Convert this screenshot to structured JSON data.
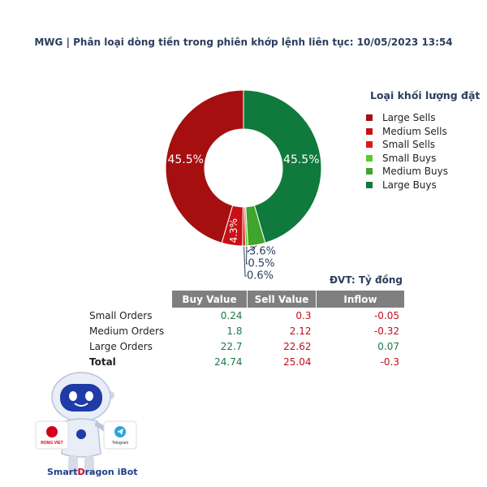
{
  "title": "MWG | Phân loại dòng tiền trong phiên khớp lệnh liên tục: 10/05/2023 13:54",
  "chart_data": {
    "type": "pie",
    "donut": true,
    "start_angle": "top, clockwise",
    "legend_title": "Loại khối lượng đặt",
    "legend_position": "right",
    "slices": [
      {
        "name": "Large Buys",
        "value": 45.5,
        "label": "45.5%",
        "color": "#0f7a3c",
        "label_color": "#ffffff"
      },
      {
        "name": "Medium Buys",
        "value": 3.6,
        "label": "3.6%",
        "color": "#3fa52c",
        "label_color": "#2c3e5c"
      },
      {
        "name": "Small Buys",
        "value": 0.5,
        "label": "0.5%",
        "color": "#5fc72e",
        "label_color": "#2c3e5c"
      },
      {
        "name": "Small Sells",
        "value": 0.6,
        "label": "0.6%",
        "color": "#e0161b",
        "label_color": "#2c3e5c"
      },
      {
        "name": "Medium Sells",
        "value": 4.3,
        "label": "4.3%",
        "color": "#c81016",
        "label_color": "#ffffff"
      },
      {
        "name": "Large Sells",
        "value": 45.5,
        "label": "45.5%",
        "color": "#a50f0f",
        "label_color": "#ffffff"
      }
    ],
    "legend": [
      {
        "name": "Large Sells",
        "color": "#a50f0f"
      },
      {
        "name": "Medium Sells",
        "color": "#c81016"
      },
      {
        "name": "Small Sells",
        "color": "#e0161b"
      },
      {
        "name": "Small Buys",
        "color": "#5fc72e"
      },
      {
        "name": "Medium Buys",
        "color": "#3fa52c"
      },
      {
        "name": "Large Buys",
        "color": "#0f7a3c"
      }
    ]
  },
  "table": {
    "unit": "ĐVT: Tỷ đồng",
    "headers": [
      "Buy Value",
      "Sell Value",
      "Inflow"
    ],
    "rows": [
      {
        "label": "Small Orders",
        "buy": "0.24",
        "sell": "0.3",
        "inflow": "-0.05",
        "inflow_color": "#c0101a"
      },
      {
        "label": "Medium Orders",
        "buy": "1.8",
        "sell": "2.12",
        "inflow": "-0.32",
        "inflow_color": "#c0101a"
      },
      {
        "label": "Large Orders",
        "buy": "22.7",
        "sell": "22.62",
        "inflow": "0.07",
        "inflow_color": "#1a7a4a"
      }
    ],
    "total": {
      "label": "Total",
      "buy": "24.74",
      "sell": "25.04",
      "inflow": "-0.3",
      "inflow_color": "#c0101a"
    }
  },
  "branding": {
    "logo_left": "RONG VIET",
    "logo_right": "Telegram",
    "brand_part1": "Smart",
    "brand_part2": "D",
    "brand_part3": "ragon iBot"
  }
}
